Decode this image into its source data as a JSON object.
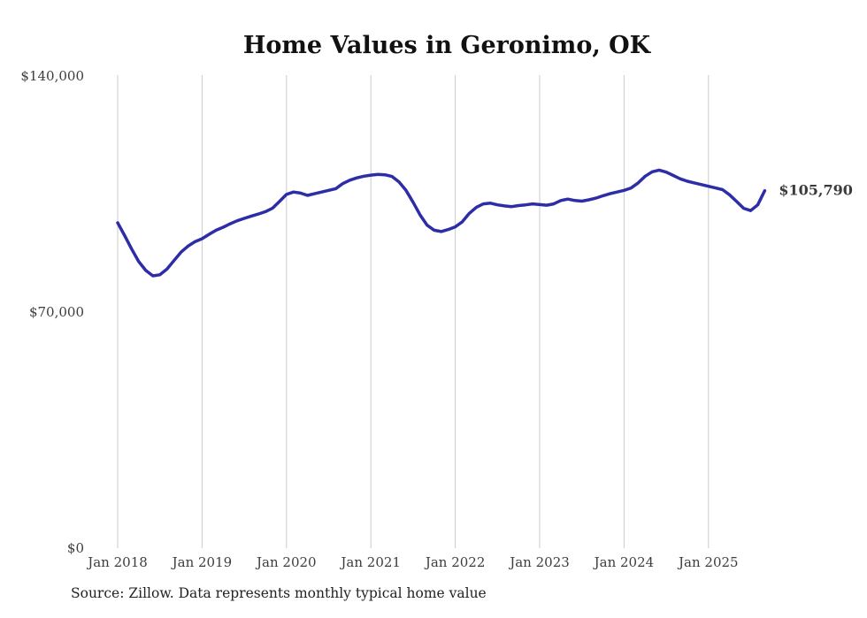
{
  "title": "Home Values in Geronimo, OK",
  "source_note": "Source: Zillow. Data represents monthly typical home value",
  "end_label": "$105,790",
  "colors": {
    "line": "#2d2da8",
    "grid": "#cbcbcb",
    "tick_text": "#3d3d3d",
    "title_text": "#111111"
  },
  "chart_data": {
    "type": "line",
    "title": "Home Values in Geronimo, OK",
    "xlabel": "",
    "ylabel": "",
    "x_start": "2018-01",
    "x_interval": "monthly",
    "x_tick_labels": [
      "Jan 2018",
      "Jan 2019",
      "Jan 2020",
      "Jan 2021",
      "Jan 2022",
      "Jan 2023",
      "Jan 2024",
      "Jan 2025"
    ],
    "y_ticks": [
      {
        "label": "$0",
        "value": 0
      },
      {
        "label": "$70,000",
        "value": 70000
      },
      {
        "label": "$140,000",
        "value": 140000
      }
    ],
    "ylim": [
      0,
      140000
    ],
    "grid": "vertical-only",
    "legend": "none",
    "latest_value": 105790,
    "values": [
      96300,
      92500,
      88500,
      84800,
      82200,
      80600,
      80900,
      82600,
      85100,
      87600,
      89400,
      90700,
      91600,
      92900,
      94100,
      95000,
      96000,
      96900,
      97600,
      98300,
      98900,
      99600,
      100600,
      102600,
      104700,
      105400,
      105100,
      104400,
      104900,
      105400,
      105900,
      106400,
      107900,
      108900,
      109600,
      110100,
      110400,
      110600,
      110500,
      110000,
      108400,
      105900,
      102400,
      98600,
      95600,
      94100,
      93700,
      94300,
      95100,
      96600,
      99100,
      100900,
      101900,
      102100,
      101600,
      101300,
      101100,
      101400,
      101600,
      101900,
      101700,
      101500,
      101900,
      102900,
      103300,
      102900,
      102700,
      103100,
      103600,
      104300,
      104900,
      105400,
      105900,
      106600,
      108100,
      110100,
      111400,
      111900,
      111300,
      110300,
      109300,
      108600,
      108100,
      107600,
      107100,
      106600,
      106100,
      104600,
      102600,
      100600,
      99900,
      101600,
      105790
    ]
  }
}
